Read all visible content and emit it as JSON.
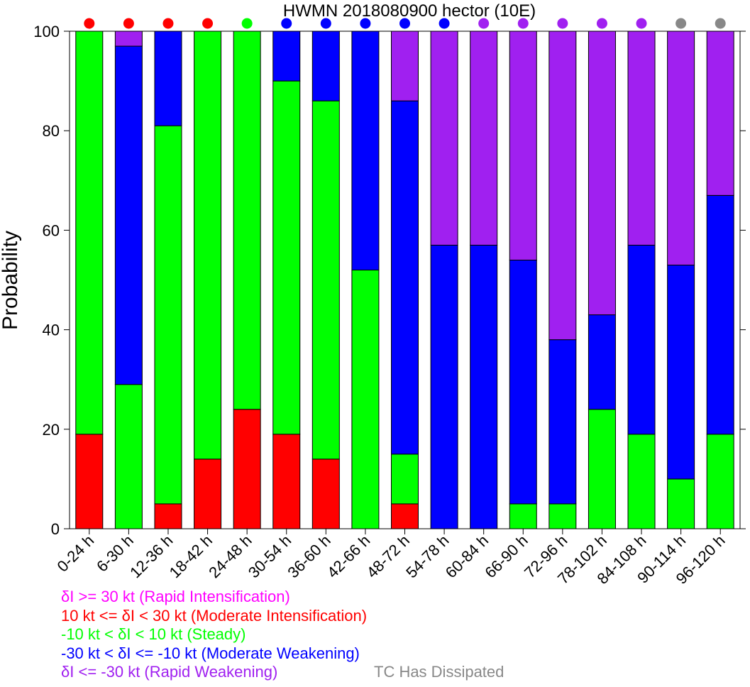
{
  "chart_data": {
    "type": "bar",
    "stacked": true,
    "title": "HWMN 2018080900 hector (10E)",
    "xlabel": "",
    "ylabel": "Probability",
    "ylim": [
      0,
      100
    ],
    "yticks": [
      0,
      20,
      40,
      60,
      80,
      100
    ],
    "grid": false,
    "legend_placement": "bottom-left",
    "categories": [
      "0-24 h",
      "6-30 h",
      "12-36 h",
      "18-42 h",
      "24-48 h",
      "30-54 h",
      "36-60 h",
      "42-66 h",
      "48-72 h",
      "54-78 h",
      "60-84 h",
      "66-90 h",
      "72-96 h",
      "78-102 h",
      "84-108 h",
      "90-114 h",
      "96-120 h"
    ],
    "series": [
      {
        "name": "δI >= 30 kt (Rapid Intensification)",
        "color": "#ff00ff",
        "values": [
          0,
          0,
          0,
          0,
          0,
          0,
          0,
          0,
          0,
          0,
          0,
          0,
          0,
          0,
          0,
          0,
          0
        ]
      },
      {
        "name": "10 kt <= δI < 30 kt (Moderate Intensification)",
        "color": "#ff0000",
        "values": [
          19,
          0,
          5,
          14,
          24,
          19,
          14,
          0,
          5,
          0,
          0,
          0,
          0,
          0,
          0,
          0,
          0
        ]
      },
      {
        "name": "-10 kt < δI < 10 kt (Steady)",
        "color": "#00ff00",
        "values": [
          81,
          29,
          76,
          86,
          76,
          71,
          72,
          52,
          10,
          0,
          0,
          5,
          5,
          24,
          19,
          10,
          19
        ]
      },
      {
        "name": "-30 kt < δI <= -10 kt (Moderate Weakening)",
        "color": "#0000ff",
        "values": [
          0,
          68,
          19,
          0,
          0,
          10,
          14,
          48,
          71,
          57,
          57,
          49,
          33,
          19,
          38,
          43,
          48
        ]
      },
      {
        "name": "δI <= -30 kt (Rapid Weakening)",
        "color": "#a020f0",
        "values": [
          0,
          3,
          0,
          0,
          0,
          0,
          0,
          0,
          14,
          43,
          43,
          46,
          62,
          57,
          43,
          47,
          33
        ]
      }
    ],
    "dissipated_label": "TC Has Dissipated",
    "dissipated_color": "#888888",
    "top_markers": [
      "#ff0000",
      "#ff0000",
      "#ff0000",
      "#ff0000",
      "#00ff00",
      "#0000ff",
      "#0000ff",
      "#0000ff",
      "#0000ff",
      "#0000ff",
      "#a020f0",
      "#a020f0",
      "#a020f0",
      "#a020f0",
      "#a020f0",
      "#888888",
      "#888888"
    ]
  }
}
